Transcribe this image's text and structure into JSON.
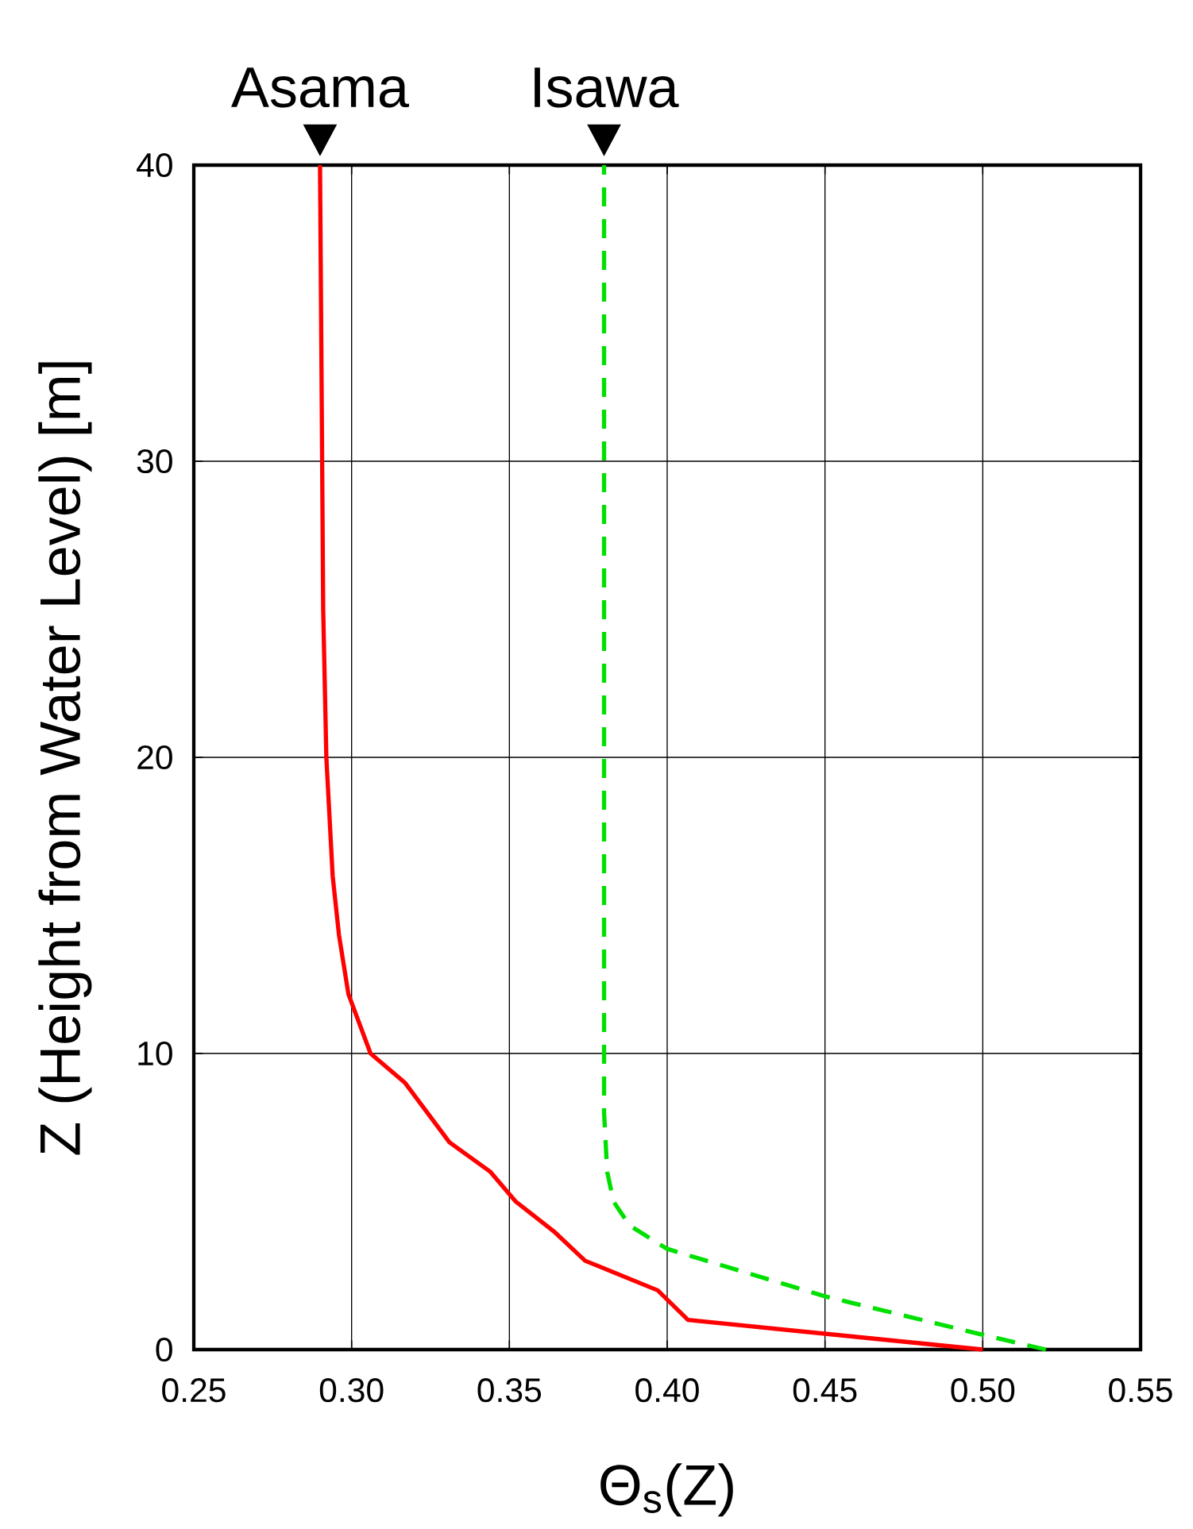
{
  "chart_data": {
    "type": "line",
    "xlabel": "Θ$_{s}$(Z)",
    "ylabel": "Z (Height from Water Level) [m]",
    "xlim": [
      0.25,
      0.55
    ],
    "ylim": [
      0,
      40
    ],
    "xticks": [
      {
        "value": 0.25,
        "label": "0.25"
      },
      {
        "value": 0.3,
        "label": "0.30"
      },
      {
        "value": 0.35,
        "label": "0.35"
      },
      {
        "value": 0.4,
        "label": "0.40"
      },
      {
        "value": 0.45,
        "label": "0.45"
      },
      {
        "value": 0.5,
        "label": "0.50"
      },
      {
        "value": 0.55,
        "label": "0.55"
      }
    ],
    "yticks": [
      0,
      10,
      20,
      30,
      40
    ],
    "grid": true,
    "marker": "none",
    "series": [
      {
        "color": "#ff0000",
        "line_style": "solid",
        "x": [
          0.5,
          0.4066,
          0.397,
          0.374,
          0.364,
          0.352,
          0.344,
          0.331,
          0.324,
          0.317,
          0.306,
          0.299,
          0.296,
          0.294,
          0.292,
          0.291,
          0.29
        ],
        "values": [
          0,
          1,
          2,
          3,
          4,
          5,
          6,
          7,
          8,
          9,
          10,
          12,
          14,
          16,
          20,
          25,
          40
        ]
      },
      {
        "color": "#00e000",
        "line_style": "dashed",
        "x": [
          0.52,
          0.5,
          0.45,
          0.4,
          0.388,
          0.383,
          0.381,
          0.38,
          0.38
        ],
        "values": [
          0,
          0.5,
          1.8,
          3.4,
          4.2,
          5,
          6,
          8,
          40
        ]
      }
    ],
    "annotations": [
      {
        "text": "Asama",
        "x": 0.29,
        "y": 40
      },
      {
        "text": "Isawa",
        "x": 0.38,
        "y": 40
      }
    ]
  }
}
